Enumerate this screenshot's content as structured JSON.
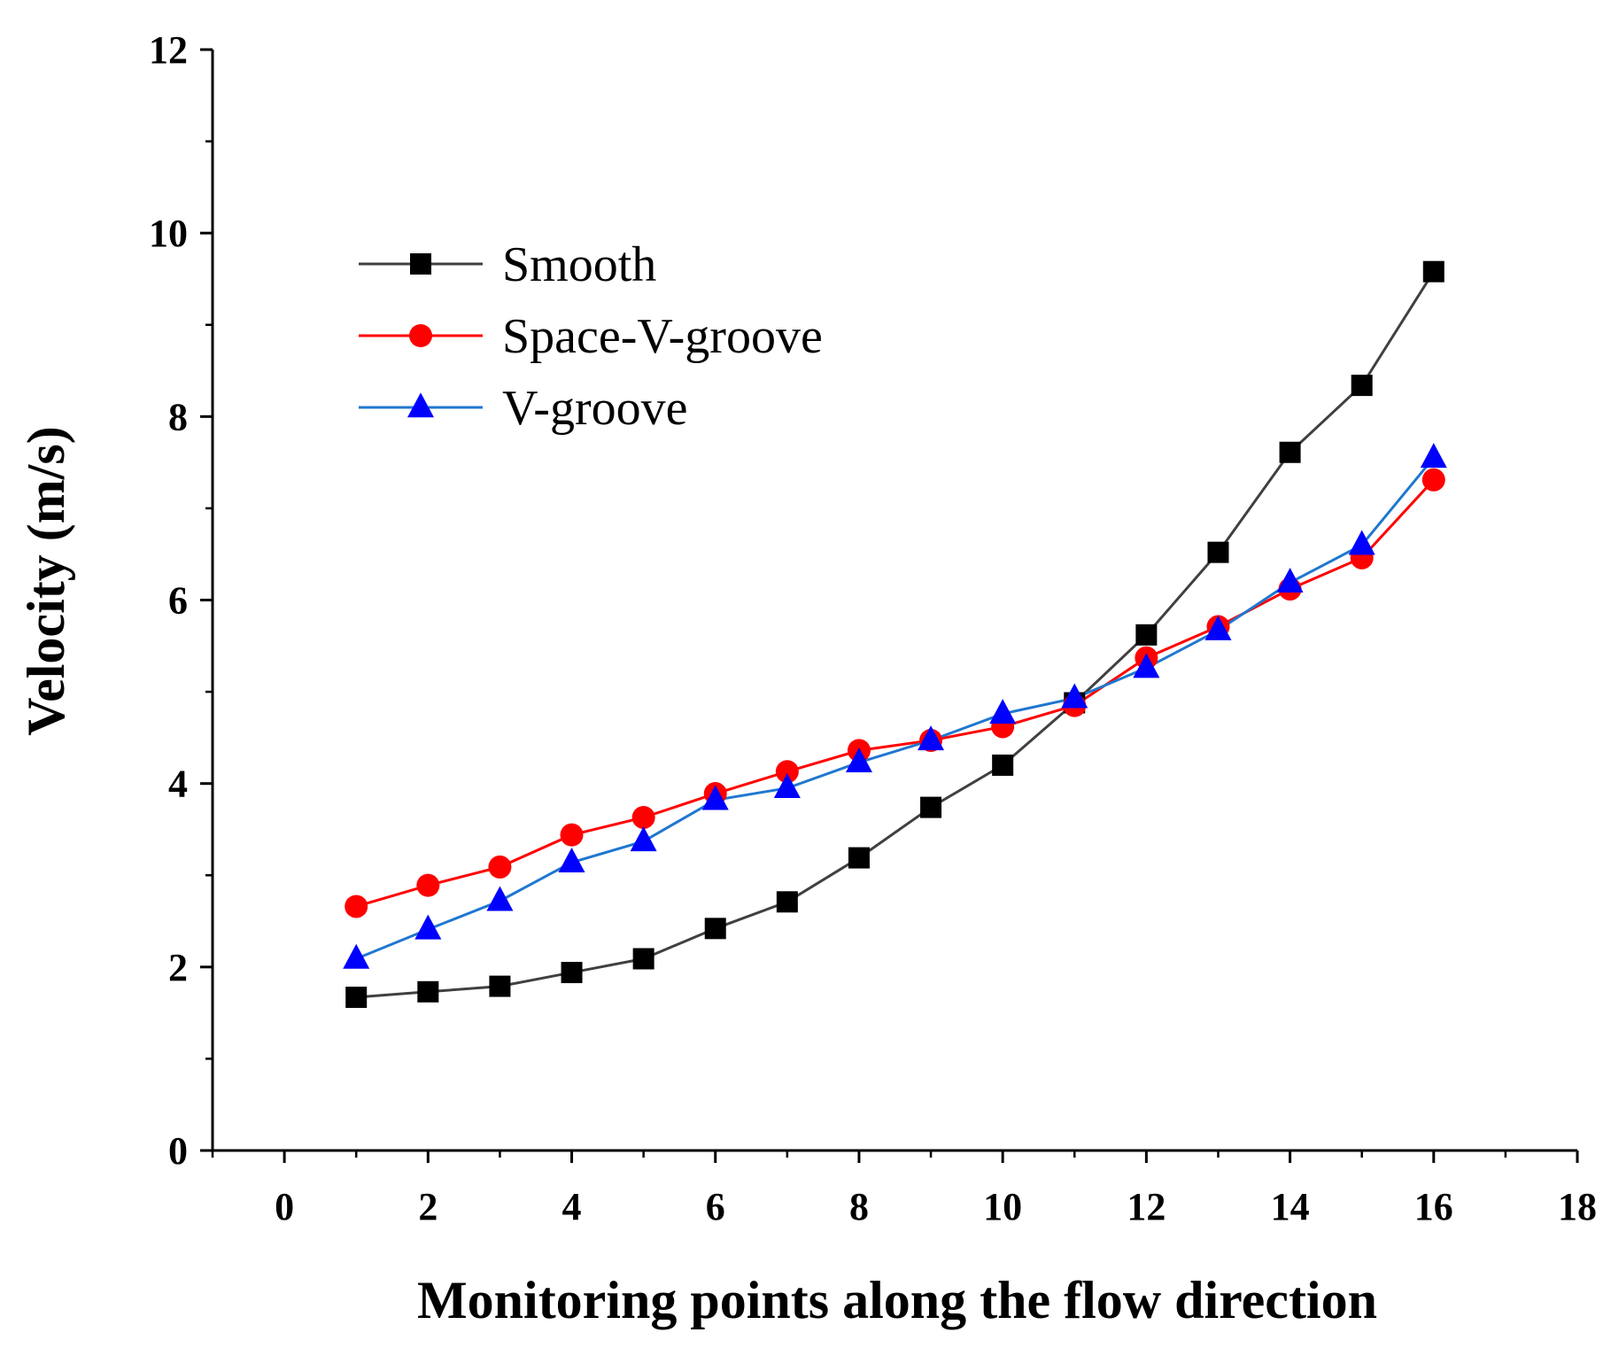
{
  "chart_data": {
    "type": "line",
    "title": "",
    "xlabel": "Monitoring points along the flow direction",
    "ylabel": "Velocity (m/s)",
    "xlim": [
      -1,
      18
    ],
    "ylim": [
      0,
      12
    ],
    "xticks": [
      0,
      2,
      4,
      6,
      8,
      10,
      12,
      14,
      16,
      18
    ],
    "yticks": [
      0,
      2,
      4,
      6,
      8,
      10,
      12
    ],
    "grid": false,
    "legend_position": "upper-left",
    "x": [
      1,
      2,
      3,
      4,
      5,
      6,
      7,
      8,
      9,
      10,
      11,
      12,
      13,
      14,
      15,
      16
    ],
    "series": [
      {
        "name": "Smooth",
        "color": "#404040",
        "marker_color": "#000000",
        "marker": "square",
        "values": [
          1.67,
          1.73,
          1.79,
          1.94,
          2.09,
          2.42,
          2.71,
          3.19,
          3.74,
          4.2,
          4.88,
          5.62,
          6.52,
          7.61,
          8.34,
          9.58
        ]
      },
      {
        "name": "Space-V-groove",
        "color": "#ff0000",
        "marker_color": "#ff0000",
        "marker": "circle",
        "values": [
          2.66,
          2.89,
          3.09,
          3.44,
          3.63,
          3.89,
          4.13,
          4.36,
          4.47,
          4.62,
          4.85,
          5.37,
          5.71,
          6.12,
          6.46,
          7.31
        ]
      },
      {
        "name": "V-groove",
        "color": "#1f77d0",
        "marker_color": "#0000ff",
        "marker": "triangle",
        "values": [
          2.09,
          2.41,
          2.72,
          3.14,
          3.37,
          3.82,
          3.95,
          4.23,
          4.47,
          4.76,
          4.93,
          5.26,
          5.67,
          6.19,
          6.6,
          7.55
        ]
      }
    ]
  }
}
